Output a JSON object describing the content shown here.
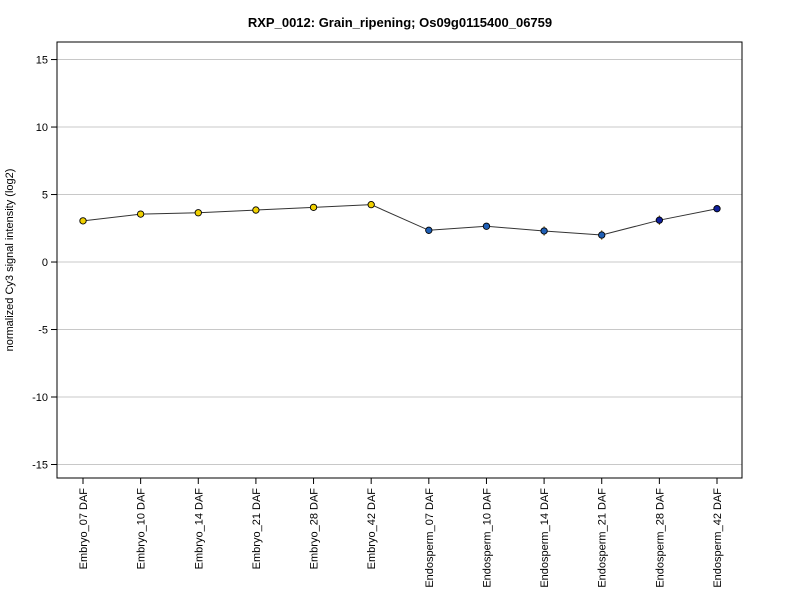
{
  "chart_data": {
    "type": "line",
    "title": "RXP_0012: Grain_ripening; Os09g0115400_06759",
    "xlabel": "",
    "ylabel": "normalized Cy3 signal intensity (log2)",
    "ylim": [
      -16,
      16.3
    ],
    "yticks": [
      -15,
      -10,
      -5,
      0,
      5,
      10,
      15
    ],
    "grid": true,
    "categories": [
      "Embryo_07 DAF",
      "Embryo_10 DAF",
      "Embryo_14 DAF",
      "Embryo_21 DAF",
      "Embryo_28 DAF",
      "Embryo_42 DAF",
      "Endosperm_07 DAF",
      "Endosperm_10 DAF",
      "Endosperm_14 DAF",
      "Endosperm_21 DAF",
      "Endosperm_28 DAF",
      "Endosperm_42 DAF"
    ],
    "values": [
      3.05,
      3.55,
      3.65,
      3.85,
      4.05,
      4.25,
      2.35,
      2.65,
      2.3,
      2.0,
      3.1,
      3.95
    ],
    "errors": [
      0.12,
      0.15,
      0.18,
      0.12,
      0.15,
      0.12,
      0.12,
      0.1,
      0.35,
      0.35,
      0.35,
      0.15
    ],
    "point_colors": [
      "#f0d000",
      "#f0d000",
      "#f0d000",
      "#f0d000",
      "#f0d000",
      "#f0d000",
      "#1f5fb5",
      "#1f5fb5",
      "#1f5fb5",
      "#1f5fb5",
      "#10209c",
      "#10209c"
    ],
    "line_color": "#333333",
    "grid_color": "#c8c8c8"
  }
}
